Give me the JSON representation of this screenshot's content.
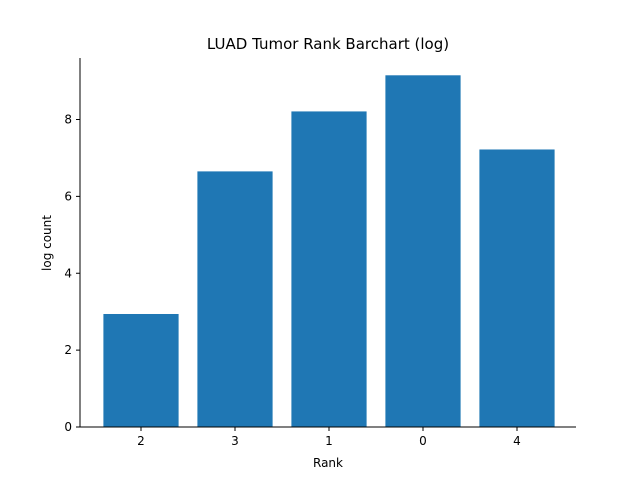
{
  "chart_data": {
    "type": "bar",
    "title": "LUAD Tumor Rank Barchart (log)",
    "xlabel": "Rank",
    "ylabel": "log count",
    "categories": [
      "2",
      "3",
      "1",
      "0",
      "4"
    ],
    "values": [
      2.94,
      6.65,
      8.21,
      9.15,
      7.22
    ],
    "ylim": [
      0,
      9.6
    ],
    "yticks": [
      0,
      2,
      4,
      6,
      8
    ],
    "bar_color": "#1f77b4",
    "grid": false,
    "legend": "none"
  }
}
